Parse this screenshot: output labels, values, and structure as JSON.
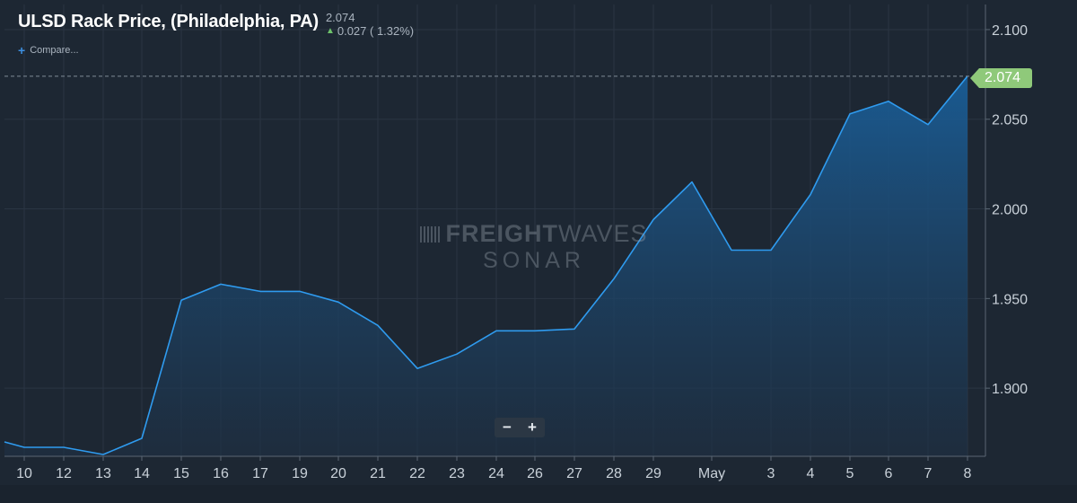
{
  "header": {
    "title": "ULSD Rack Price, (Philadelphia, PA)",
    "last_price": "2.074",
    "change": "0.027 ( 1.32%)",
    "change_direction_icon": "up-arrow-icon"
  },
  "compare_label": "Compare...",
  "watermark": {
    "brand_bold": "FREIGHT",
    "brand_light": "WAVES",
    "product": "SONAR"
  },
  "zoom": {
    "minus": "−",
    "plus": "+"
  },
  "price_tag": "2.074",
  "colors": {
    "background": "#1d2733",
    "line": "#2f9bef",
    "area_top": "#1a5d96",
    "area_bottom": "#1e3044",
    "grid": "#2a3543",
    "price_tag": "#8fc97a",
    "up": "#6ec26b"
  },
  "chart_data": {
    "type": "area",
    "title": "ULSD Rack Price, (Philadelphia, PA)",
    "x_labels": [
      "10",
      "12",
      "13",
      "14",
      "15",
      "16",
      "17",
      "19",
      "20",
      "21",
      "22",
      "23",
      "24",
      "26",
      "27",
      "28",
      "29",
      "May",
      "3",
      "4",
      "5",
      "6",
      "7",
      "8"
    ],
    "y_ticks": [
      1.9,
      1.95,
      2.0,
      2.05,
      2.1
    ],
    "y_tick_labels": [
      "1.900",
      "1.950",
      "2.000",
      "2.050",
      "2.100"
    ],
    "ylim": [
      1.862,
      2.114
    ],
    "grid": true,
    "last_value_line": 2.074,
    "series": [
      {
        "points": [
          [
            "9",
            1.87
          ],
          [
            "10",
            1.867
          ],
          [
            "12",
            1.867
          ],
          [
            "13",
            1.863
          ],
          [
            "14",
            1.872
          ],
          [
            "15",
            1.949
          ],
          [
            "16",
            1.958
          ],
          [
            "17",
            1.954
          ],
          [
            "19",
            1.954
          ],
          [
            "20",
            1.948
          ],
          [
            "21",
            1.935
          ],
          [
            "22",
            1.911
          ],
          [
            "23",
            1.919
          ],
          [
            "24",
            1.932
          ],
          [
            "26",
            1.932
          ],
          [
            "27",
            1.933
          ],
          [
            "28",
            1.961
          ],
          [
            "29",
            1.994
          ],
          [
            "30",
            2.015
          ],
          [
            "May",
            1.977
          ],
          [
            "3",
            1.977
          ],
          [
            "4",
            2.008
          ],
          [
            "5",
            2.053
          ],
          [
            "6",
            2.06
          ],
          [
            "7",
            2.047
          ],
          [
            "8",
            2.074
          ]
        ]
      }
    ]
  }
}
